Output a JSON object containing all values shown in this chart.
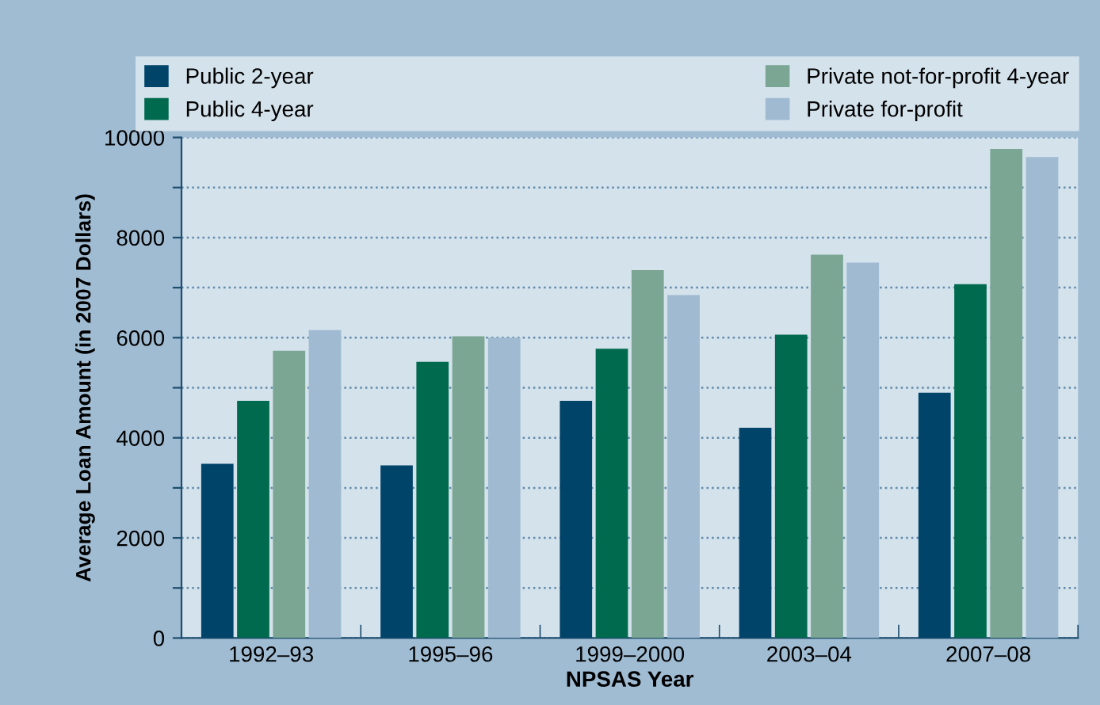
{
  "chart_data": {
    "type": "bar",
    "xlabel": "NPSAS Year",
    "ylabel": "Average Loan Amount (in 2007 Dollars)",
    "categories": [
      "1992–93",
      "1995–96",
      "1999–2000",
      "2003–04",
      "2007–08"
    ],
    "series": [
      {
        "name": "Public 2-year",
        "color": "#00446a",
        "values": [
          3480,
          3450,
          4740,
          4200,
          4900
        ]
      },
      {
        "name": "Public 4-year",
        "color": "#006a4e",
        "values": [
          4740,
          5520,
          5780,
          6060,
          7070
        ]
      },
      {
        "name": "Private not-for-profit 4-year",
        "color": "#7aa693",
        "values": [
          5740,
          6030,
          7350,
          7660,
          9770
        ]
      },
      {
        "name": "Private for-profit",
        "color": "#9fbad1",
        "values": [
          6150,
          6000,
          6850,
          7500,
          9610
        ]
      }
    ],
    "ylim": [
      0,
      10000
    ],
    "yticks": [
      0,
      {
        "value": 1000,
        "label": null
      },
      2000,
      {
        "value": 3000,
        "label": null
      },
      4000,
      {
        "value": 5000,
        "label": null
      },
      6000,
      {
        "value": 7000,
        "label": null
      },
      8000,
      {
        "value": 9000,
        "label": null
      },
      10000
    ],
    "grid": "y",
    "legend": "top"
  }
}
